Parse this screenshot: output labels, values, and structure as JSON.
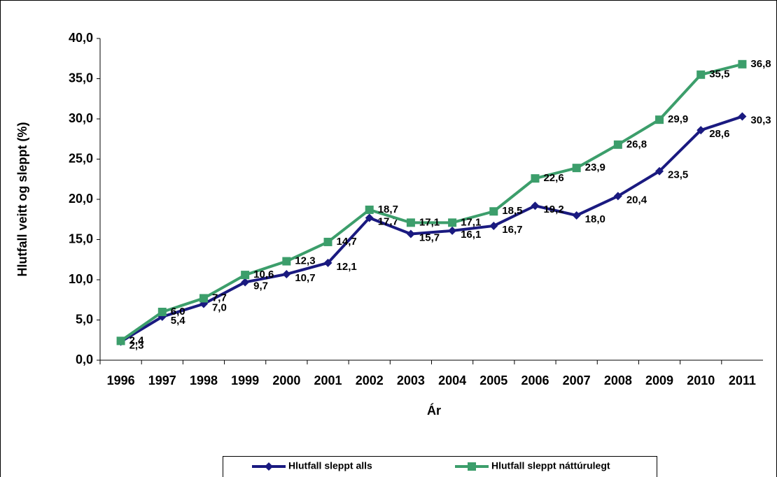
{
  "chart_data": {
    "type": "line",
    "x_label": "Ár",
    "y_label": "Hlutfall veitt og sleppt (%)",
    "categories": [
      "1996",
      "1997",
      "1998",
      "1999",
      "2000",
      "2001",
      "2002",
      "2003",
      "2004",
      "2005",
      "2006",
      "2007",
      "2008",
      "2009",
      "2010",
      "2011"
    ],
    "series": [
      {
        "name": "Hlutfall sleppt alls",
        "color": "#1a1a80",
        "marker": "diamond",
        "values": [
          2.3,
          5.4,
          7.0,
          9.7,
          10.7,
          12.1,
          17.7,
          15.7,
          16.1,
          16.7,
          19.2,
          18.0,
          20.4,
          23.5,
          28.6,
          30.3
        ],
        "value_labels": [
          "2,3",
          "5,4",
          "7,0",
          "9,7",
          "10,7",
          "12,1",
          "17,7",
          "15,7",
          "16,1",
          "16,7",
          "19,2",
          "18,0",
          "20,4",
          "23,5",
          "28,6",
          "30,3"
        ]
      },
      {
        "name": "Hlutfall sleppt náttúrulegt",
        "color": "#3c9e6b",
        "marker": "square",
        "values": [
          2.4,
          6.0,
          7.7,
          10.6,
          12.3,
          14.7,
          18.7,
          17.1,
          17.1,
          18.5,
          22.6,
          23.9,
          26.8,
          29.9,
          35.5,
          36.8
        ],
        "value_labels": [
          "2,4",
          "6,0",
          "7,7",
          "10,6",
          "12,3",
          "14,7",
          "18,7",
          "17,1",
          "17,1",
          "18,5",
          "22,6",
          "23,9",
          "26,8",
          "29,9",
          "35,5",
          "36,8"
        ]
      }
    ],
    "ylim": [
      0,
      40
    ],
    "yticks": [
      {
        "value": 0,
        "label": "0,0"
      },
      {
        "value": 5,
        "label": "5,0"
      },
      {
        "value": 10,
        "label": "10,0"
      },
      {
        "value": 15,
        "label": "15,0"
      },
      {
        "value": 20,
        "label": "20,0"
      },
      {
        "value": 25,
        "label": "25,0"
      },
      {
        "value": 30,
        "label": "30,0"
      },
      {
        "value": 35,
        "label": "35,0"
      },
      {
        "value": 40,
        "label": "40,0"
      }
    ],
    "grid": false
  }
}
